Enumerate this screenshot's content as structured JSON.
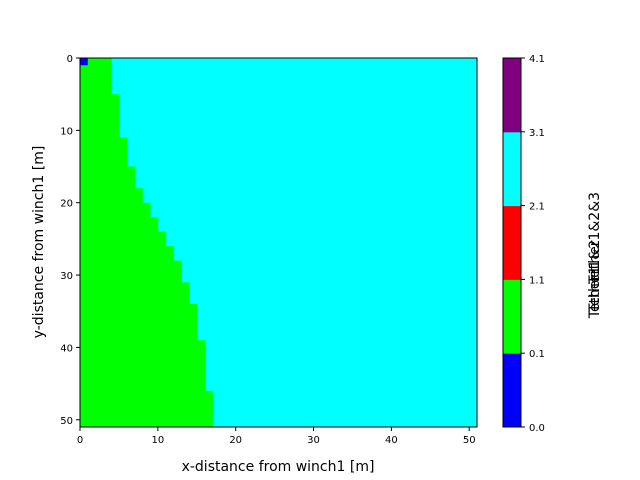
{
  "chart_data": {
    "type": "heatmap",
    "xlabel": "x-distance from winch1 [m]",
    "ylabel": "y-distance from winch1 [m]",
    "xlim": [
      0,
      51
    ],
    "ylim": [
      51,
      0
    ],
    "x_ticks": [
      "0",
      "10",
      "20",
      "30",
      "40",
      "50"
    ],
    "y_ticks": [
      "0",
      "10",
      "20",
      "30",
      "40",
      "50"
    ],
    "colorbar": {
      "ticks": [
        "0.0",
        "0.1",
        "1.1",
        "2.1",
        "3.1",
        "4.1"
      ],
      "bins": [
        {
          "from": 0.0,
          "to": 0.1,
          "color": "#0000ff"
        },
        {
          "from": 0.1,
          "to": 1.1,
          "color": "#00ff00"
        },
        {
          "from": 1.1,
          "to": 2.1,
          "color": "#ff0000"
        },
        {
          "from": 2.1,
          "to": 3.1,
          "color": "#00ffff"
        },
        {
          "from": 3.1,
          "to": 4.1,
          "color": "#800080"
        }
      ],
      "overlapping_labels": [
        "Tether1",
        "Tether1&2",
        "Tether1&2&3"
      ]
    },
    "background_value_color": "#00ffff",
    "region_value_color": "#00ff00",
    "origin_cell": {
      "x": [
        0,
        1
      ],
      "y": [
        0,
        1
      ],
      "color": "#0000ff"
    },
    "green_region_boundary": [
      {
        "y_from": 0,
        "y_to": 5,
        "x_max": 4
      },
      {
        "y_from": 5,
        "y_to": 11,
        "x_max": 5
      },
      {
        "y_from": 11,
        "y_to": 15,
        "x_max": 6
      },
      {
        "y_from": 15,
        "y_to": 18,
        "x_max": 7
      },
      {
        "y_from": 18,
        "y_to": 20,
        "x_max": 8
      },
      {
        "y_from": 20,
        "y_to": 22,
        "x_max": 9
      },
      {
        "y_from": 22,
        "y_to": 24,
        "x_max": 10
      },
      {
        "y_from": 24,
        "y_to": 26,
        "x_max": 11
      },
      {
        "y_from": 26,
        "y_to": 28,
        "x_max": 12
      },
      {
        "y_from": 28,
        "y_to": 31,
        "x_max": 13
      },
      {
        "y_from": 31,
        "y_to": 34,
        "x_max": 14
      },
      {
        "y_from": 34,
        "y_to": 39,
        "x_max": 15
      },
      {
        "y_from": 39,
        "y_to": 46,
        "x_max": 16
      },
      {
        "y_from": 46,
        "y_to": 51,
        "x_max": 17
      }
    ]
  }
}
